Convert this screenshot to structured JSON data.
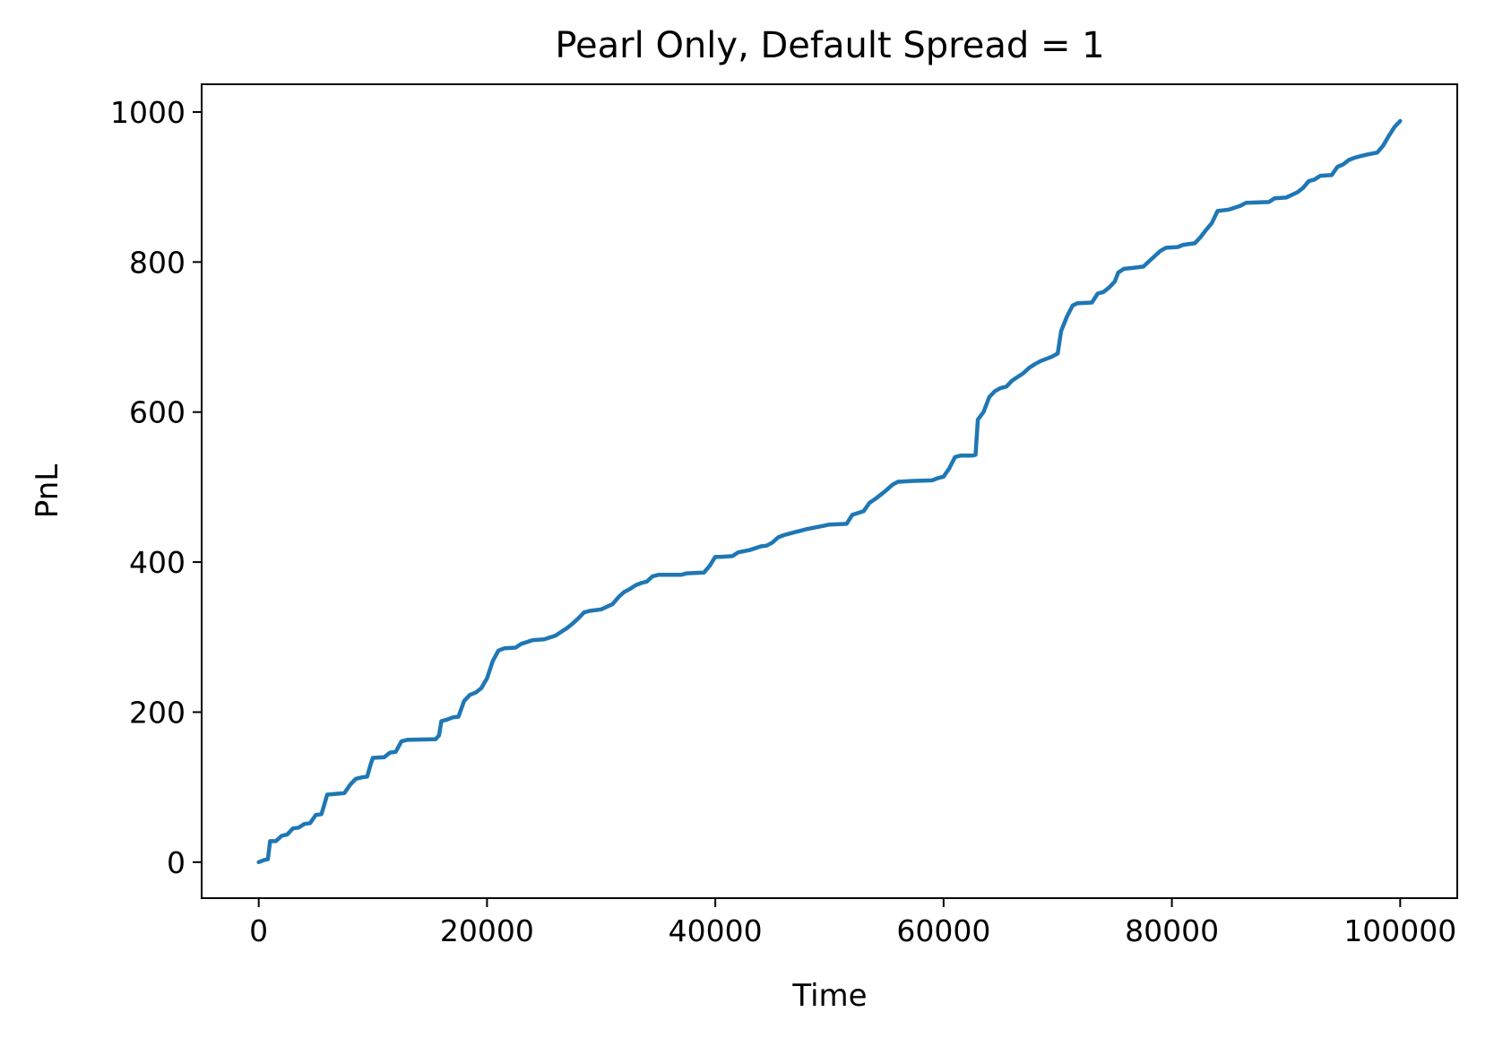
{
  "chart_data": {
    "type": "line",
    "title": "Pearl Only, Default Spread = 1",
    "xlabel": "Time",
    "ylabel": "PnL",
    "xlim": [
      -5000,
      105000
    ],
    "ylim": [
      -48,
      1037
    ],
    "xticks": [
      0,
      20000,
      40000,
      60000,
      80000,
      100000
    ],
    "yticks": [
      0,
      200,
      400,
      600,
      800,
      1000
    ],
    "grid": false,
    "legend": "none",
    "series": [
      {
        "color": "#1f77b4",
        "points": [
          [
            0,
            0
          ],
          [
            500,
            3
          ],
          [
            800,
            4
          ],
          [
            1000,
            28
          ],
          [
            1500,
            28
          ],
          [
            2000,
            35
          ],
          [
            2500,
            37
          ],
          [
            3000,
            45
          ],
          [
            3500,
            46
          ],
          [
            4000,
            51
          ],
          [
            4500,
            52
          ],
          [
            5000,
            63
          ],
          [
            5500,
            64
          ],
          [
            6000,
            90
          ],
          [
            7500,
            92
          ],
          [
            8000,
            103
          ],
          [
            8500,
            111
          ],
          [
            9000,
            113
          ],
          [
            9500,
            114
          ],
          [
            9800,
            130
          ],
          [
            10000,
            139
          ],
          [
            11000,
            140
          ],
          [
            11500,
            146
          ],
          [
            12000,
            147
          ],
          [
            12500,
            161
          ],
          [
            13000,
            163
          ],
          [
            15500,
            164
          ],
          [
            15800,
            169
          ],
          [
            16000,
            188
          ],
          [
            16500,
            190
          ],
          [
            17000,
            193
          ],
          [
            17500,
            194
          ],
          [
            18000,
            215
          ],
          [
            18500,
            223
          ],
          [
            19000,
            226
          ],
          [
            19500,
            232
          ],
          [
            20000,
            245
          ],
          [
            20500,
            268
          ],
          [
            21000,
            282
          ],
          [
            21500,
            285
          ],
          [
            22500,
            286
          ],
          [
            23000,
            291
          ],
          [
            24000,
            296
          ],
          [
            25000,
            297
          ],
          [
            26000,
            302
          ],
          [
            26500,
            307
          ],
          [
            27000,
            312
          ],
          [
            27500,
            318
          ],
          [
            28000,
            325
          ],
          [
            28500,
            333
          ],
          [
            29000,
            335
          ],
          [
            30000,
            337
          ],
          [
            31000,
            344
          ],
          [
            31500,
            353
          ],
          [
            32000,
            360
          ],
          [
            32500,
            364
          ],
          [
            33000,
            369
          ],
          [
            33500,
            372
          ],
          [
            34000,
            374
          ],
          [
            34500,
            381
          ],
          [
            35000,
            383
          ],
          [
            37000,
            383
          ],
          [
            37500,
            385
          ],
          [
            39000,
            386
          ],
          [
            39500,
            395
          ],
          [
            40000,
            407
          ],
          [
            40500,
            407
          ],
          [
            41500,
            408
          ],
          [
            42000,
            413
          ],
          [
            43000,
            416
          ],
          [
            44000,
            421
          ],
          [
            44500,
            422
          ],
          [
            45000,
            426
          ],
          [
            45500,
            433
          ],
          [
            46000,
            436
          ],
          [
            46500,
            438
          ],
          [
            47000,
            440
          ],
          [
            48000,
            444
          ],
          [
            49000,
            447
          ],
          [
            50000,
            450
          ],
          [
            51500,
            451
          ],
          [
            52000,
            463
          ],
          [
            53000,
            468
          ],
          [
            53500,
            479
          ],
          [
            54000,
            484
          ],
          [
            54500,
            490
          ],
          [
            55000,
            496
          ],
          [
            55500,
            503
          ],
          [
            56000,
            507
          ],
          [
            57000,
            508
          ],
          [
            59000,
            509
          ],
          [
            59500,
            512
          ],
          [
            60000,
            514
          ],
          [
            60500,
            525
          ],
          [
            61000,
            540
          ],
          [
            61500,
            542
          ],
          [
            62500,
            542
          ],
          [
            62800,
            543
          ],
          [
            63000,
            590
          ],
          [
            63500,
            600
          ],
          [
            64000,
            620
          ],
          [
            64500,
            628
          ],
          [
            65000,
            632
          ],
          [
            65500,
            634
          ],
          [
            66000,
            642
          ],
          [
            66500,
            647
          ],
          [
            67000,
            652
          ],
          [
            67500,
            659
          ],
          [
            68000,
            664
          ],
          [
            68500,
            668
          ],
          [
            69000,
            671
          ],
          [
            69500,
            674
          ],
          [
            70000,
            678
          ],
          [
            70300,
            708
          ],
          [
            70800,
            727
          ],
          [
            71300,
            742
          ],
          [
            71700,
            745
          ],
          [
            73000,
            746
          ],
          [
            73500,
            758
          ],
          [
            74000,
            760
          ],
          [
            74500,
            766
          ],
          [
            75000,
            774
          ],
          [
            75300,
            786
          ],
          [
            75800,
            791
          ],
          [
            76500,
            792
          ],
          [
            77500,
            794
          ],
          [
            78000,
            801
          ],
          [
            78500,
            808
          ],
          [
            79000,
            815
          ],
          [
            79500,
            819
          ],
          [
            80500,
            820
          ],
          [
            81000,
            823
          ],
          [
            82000,
            825
          ],
          [
            82500,
            833
          ],
          [
            83000,
            843
          ],
          [
            83500,
            852
          ],
          [
            84000,
            868
          ],
          [
            85000,
            870
          ],
          [
            86000,
            875
          ],
          [
            86500,
            879
          ],
          [
            88500,
            880
          ],
          [
            89000,
            885
          ],
          [
            90000,
            886
          ],
          [
            91000,
            893
          ],
          [
            91500,
            899
          ],
          [
            92000,
            908
          ],
          [
            92500,
            910
          ],
          [
            93000,
            915
          ],
          [
            94000,
            916
          ],
          [
            94500,
            927
          ],
          [
            95000,
            930
          ],
          [
            95500,
            936
          ],
          [
            96000,
            939
          ],
          [
            96500,
            941
          ],
          [
            97000,
            943
          ],
          [
            98000,
            946
          ],
          [
            98500,
            955
          ],
          [
            99000,
            968
          ],
          [
            99500,
            980
          ],
          [
            100000,
            988
          ]
        ]
      }
    ]
  }
}
